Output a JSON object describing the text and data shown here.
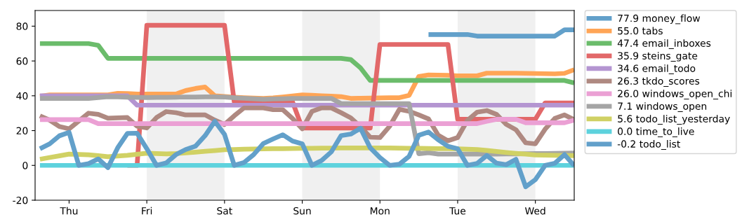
{
  "chart_data": {
    "type": "line",
    "ylim": [
      -20,
      89
    ],
    "yticks": [
      -20,
      0,
      20,
      40,
      60,
      80
    ],
    "grid": false,
    "legend": "right",
    "line_style": "solid",
    "marker": "none",
    "categories": [
      null,
      null,
      null,
      "Thu",
      null,
      null,
      null,
      null,
      null,
      null,
      null,
      "Fri",
      null,
      null,
      null,
      null,
      null,
      null,
      null,
      "Sat",
      null,
      null,
      null,
      null,
      null,
      null,
      null,
      "Sun",
      null,
      null,
      null,
      null,
      null,
      null,
      null,
      "Mon",
      null,
      null,
      null,
      null,
      null,
      null,
      null,
      "Tue",
      null,
      null,
      null,
      null,
      null,
      null,
      null,
      "Wed",
      null,
      null,
      null,
      null
    ],
    "bands": [
      {
        "axis": "x",
        "from": "Fri",
        "to": "Sat",
        "color": "#f0f0f0"
      },
      {
        "axis": "x",
        "from": "Sun",
        "to": "Mon",
        "color": "#f0f0f0"
      },
      {
        "axis": "x",
        "from": "Tue",
        "to": "Wed",
        "color": "#f0f0f0"
      }
    ],
    "series": [
      {
        "name": "77.9 money_flow",
        "color": "#62a0ca",
        "values": [
          null,
          null,
          null,
          null,
          null,
          null,
          null,
          null,
          null,
          null,
          null,
          null,
          null,
          null,
          null,
          null,
          null,
          null,
          null,
          null,
          null,
          null,
          null,
          null,
          null,
          null,
          null,
          null,
          null,
          null,
          null,
          null,
          null,
          null,
          null,
          null,
          null,
          null,
          null,
          null,
          75.2,
          75.2,
          75.2,
          75.2,
          75.2,
          74.3,
          74.3,
          74.3,
          74.3,
          74.3,
          74.3,
          74.3,
          74.3,
          74.3,
          77.9,
          77.9
        ]
      },
      {
        "name": "55.0 tabs",
        "color": "#ffa556",
        "values": [
          39.7,
          40.5,
          40.5,
          40.5,
          40.5,
          40.5,
          40.5,
          40.5,
          41.4,
          41.3,
          41,
          41,
          41,
          41,
          41,
          43,
          44.2,
          45,
          40,
          39.6,
          39.2,
          38.9,
          38.7,
          38.5,
          38.8,
          39.3,
          39.9,
          40.5,
          40.3,
          40,
          39.8,
          39.5,
          38.5,
          38.6,
          38.7,
          38.8,
          38.9,
          38.9,
          40.2,
          51.1,
          52,
          51.9,
          51.8,
          51.5,
          51.5,
          51.5,
          53,
          53,
          53,
          53,
          52.9,
          52.8,
          52.7,
          52.6,
          52.9,
          55
        ]
      },
      {
        "name": "47.4 email_inboxes",
        "color": "#6bbc6b",
        "values": [
          70,
          70,
          70,
          70,
          70,
          70,
          69,
          61.5,
          61.5,
          61.5,
          61.5,
          61.5,
          61.5,
          61.5,
          61.5,
          61.5,
          61.5,
          61.5,
          61.5,
          61.5,
          61.5,
          61.5,
          61.5,
          61.5,
          61.5,
          61.5,
          61.5,
          61.5,
          61.5,
          61.5,
          61.5,
          61.5,
          60.8,
          56,
          48.8,
          48.8,
          48.8,
          48.8,
          48.8,
          48.8,
          48.8,
          48.8,
          48.8,
          48.8,
          48.8,
          48.8,
          48.8,
          48.8,
          48.8,
          48.8,
          48.8,
          48.8,
          48.8,
          48.8,
          48.8,
          47.4
        ]
      },
      {
        "name": "35.9 steins_gate",
        "color": "#e26869",
        "values": [
          null,
          null,
          null,
          null,
          null,
          null,
          null,
          null,
          null,
          0,
          0,
          80.5,
          80.5,
          80.5,
          80.5,
          80.5,
          80.5,
          80.5,
          80.5,
          80.5,
          36.5,
          36.5,
          36.5,
          36.5,
          36.5,
          36.5,
          36.5,
          21.5,
          21.5,
          21.5,
          21.5,
          21.5,
          21.5,
          21.5,
          21.5,
          69.5,
          69.5,
          69.5,
          69.5,
          69.5,
          69.5,
          69.5,
          69.5,
          26.5,
          26.5,
          26.5,
          26.5,
          26.5,
          26.5,
          26.5,
          26.5,
          26.5,
          35.9,
          35.9,
          35.9,
          35.9
        ]
      },
      {
        "name": "34.6 email_todo",
        "color": "#b495d1",
        "values": [
          40,
          40,
          40,
          40,
          40,
          40,
          40,
          40,
          40,
          40,
          34.6,
          34.6,
          34.6,
          34.6,
          34.6,
          34.6,
          34.6,
          34.6,
          34.6,
          34.6,
          34.6,
          34.6,
          34.6,
          34.6,
          34.6,
          34.6,
          34.6,
          34.6,
          34.6,
          34.6,
          34.6,
          34.6,
          34.6,
          34.6,
          34.6,
          34.6,
          34.6,
          34.6,
          34.6,
          34.6,
          34.6,
          34.6,
          34.6,
          34.6,
          34.6,
          34.6,
          34.6,
          34.6,
          34.6,
          34.6,
          34.6,
          34.6,
          34.6,
          34.6,
          34.6,
          34.6
        ]
      },
      {
        "name": "26.3 tkdo_scores",
        "color": "#af8981",
        "values": [
          28.5,
          26,
          22.3,
          21,
          25.5,
          30,
          29.3,
          27.1,
          27.3,
          27.5,
          22.5,
          21.5,
          27.5,
          30.9,
          30.3,
          29,
          29,
          29,
          26,
          23.5,
          28.5,
          33,
          33,
          33,
          32,
          32,
          27,
          21,
          31,
          33,
          33,
          30.3,
          27.3,
          22.2,
          16.2,
          16,
          22.5,
          32.2,
          31.1,
          29,
          26.7,
          17.3,
          14.1,
          16,
          25.8,
          30.6,
          31.5,
          29.3,
          23.6,
          20.5,
          13,
          12.4,
          20.8,
          27,
          29,
          26.3
        ]
      },
      {
        "name": "26.0 windows_open_chi",
        "color": "#eba0d4",
        "values": [
          26.3,
          26.3,
          26.3,
          26.3,
          26.3,
          26.3,
          24,
          24,
          24,
          24,
          24,
          24,
          24,
          24,
          24,
          24,
          24,
          24,
          24,
          24,
          24,
          24,
          24,
          24,
          24,
          24,
          24,
          24,
          24,
          24,
          24,
          24,
          24,
          24,
          24,
          24,
          24,
          24,
          24,
          24,
          24,
          24,
          24,
          24,
          24,
          24,
          25.3,
          26.5,
          26.5,
          26.5,
          24.5,
          24.5,
          24.5,
          24.5,
          24.5,
          26
        ]
      },
      {
        "name": "7.1 windows_open",
        "color": "#a5a5a5",
        "values": [
          38.5,
          38.5,
          38.5,
          38.5,
          38.5,
          38.5,
          39,
          39.5,
          39.4,
          39.2,
          39.1,
          39,
          39.1,
          39.1,
          39.2,
          39.3,
          39.3,
          39.4,
          39.4,
          39.3,
          38.9,
          38.6,
          38.3,
          38,
          38.2,
          38.3,
          38.5,
          38.5,
          38.5,
          38.5,
          38.5,
          35.5,
          35.5,
          35.5,
          35.5,
          35.5,
          35.5,
          35.5,
          35.5,
          6.7,
          7.3,
          6.5,
          6.5,
          6.5,
          6.5,
          6.5,
          6.5,
          6.5,
          6.6,
          6.6,
          6.7,
          6.8,
          6.8,
          6.9,
          7,
          7.1
        ]
      },
      {
        "name": "5.6 todo_list_yesterday",
        "color": "#d0d164",
        "values": [
          3.5,
          4.5,
          5.5,
          6.5,
          6.3,
          6.1,
          5.6,
          5,
          5.4,
          5.8,
          6.4,
          7,
          6.8,
          6.6,
          6.8,
          7.2,
          7.6,
          8.1,
          8.5,
          9,
          9.1,
          9.3,
          9.4,
          9.5,
          9.6,
          9.6,
          9.7,
          9.8,
          9.8,
          9.9,
          9.9,
          10,
          10,
          10,
          10,
          10,
          10,
          9.9,
          9.8,
          9.8,
          9.7,
          9.6,
          9.6,
          9.5,
          9.3,
          9.1,
          8.6,
          8,
          7.4,
          6.9,
          6.5,
          6,
          5.9,
          5.8,
          5.7,
          5.6
        ]
      },
      {
        "name": "0.0 time_to_live",
        "color": "#5dd2dd",
        "values": [
          0,
          0,
          0,
          0,
          0,
          0,
          0,
          0,
          0,
          0,
          0,
          0,
          0,
          0,
          0,
          0,
          0,
          0,
          0,
          0,
          0,
          0,
          0,
          0,
          0,
          0,
          0,
          0,
          0,
          0,
          0,
          0,
          0,
          0,
          0,
          0,
          0,
          0,
          0,
          0,
          0,
          0,
          0,
          0,
          0,
          0,
          0,
          0,
          0,
          0,
          0,
          0,
          0,
          0,
          0,
          0
        ]
      },
      {
        "name": "-0.2 todo_list",
        "color": "#62a0ca",
        "values": [
          9.6,
          12.4,
          17,
          19,
          0,
          1,
          3.7,
          -1.3,
          10.1,
          18.4,
          18.5,
          9.6,
          0,
          1.4,
          6.2,
          9.1,
          11,
          17.1,
          25.3,
          17.8,
          0,
          1.6,
          6.2,
          12.6,
          15.2,
          17.6,
          14,
          12.4,
          0,
          2.8,
          7.8,
          17.1,
          18,
          21.3,
          10.1,
          4.5,
          0,
          0.7,
          5.2,
          17.3,
          19.2,
          14.7,
          11,
          9.6,
          0,
          1.1,
          5.7,
          1.3,
          0.4,
          3.5,
          -12.3,
          -8.2,
          0,
          1.2,
          6.2,
          -0.2
        ]
      }
    ]
  }
}
